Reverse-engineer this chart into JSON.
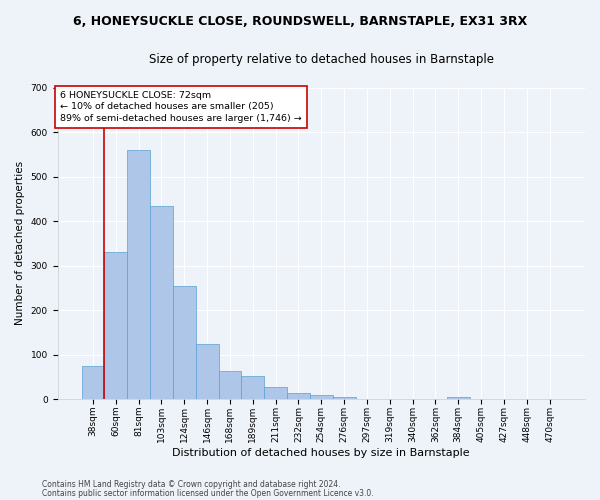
{
  "title_line1": "6, HONEYSUCKLE CLOSE, ROUNDSWELL, BARNSTAPLE, EX31 3RX",
  "title_line2": "Size of property relative to detached houses in Barnstaple",
  "xlabel": "Distribution of detached houses by size in Barnstaple",
  "ylabel": "Number of detached properties",
  "categories": [
    "38sqm",
    "60sqm",
    "81sqm",
    "103sqm",
    "124sqm",
    "146sqm",
    "168sqm",
    "189sqm",
    "211sqm",
    "232sqm",
    "254sqm",
    "276sqm",
    "297sqm",
    "319sqm",
    "340sqm",
    "362sqm",
    "384sqm",
    "405sqm",
    "427sqm",
    "448sqm",
    "470sqm"
  ],
  "values": [
    75,
    330,
    560,
    435,
    255,
    125,
    63,
    52,
    28,
    15,
    10,
    5,
    0,
    0,
    0,
    0,
    5,
    0,
    0,
    0,
    0
  ],
  "bar_color": "#aec6e8",
  "bar_edge_color": "#5a9fd4",
  "vline_color": "#cc0000",
  "vline_x_index": 1,
  "annotation_text": "6 HONEYSUCKLE CLOSE: 72sqm\n← 10% of detached houses are smaller (205)\n89% of semi-detached houses are larger (1,746) →",
  "annotation_box_color": "#ffffff",
  "annotation_box_edge": "#cc0000",
  "ylim": [
    0,
    700
  ],
  "yticks": [
    0,
    100,
    200,
    300,
    400,
    500,
    600,
    700
  ],
  "footer_line1": "Contains HM Land Registry data © Crown copyright and database right 2024.",
  "footer_line2": "Contains public sector information licensed under the Open Government Licence v3.0.",
  "background_color": "#eef2f9",
  "grid_color": "#ffffff",
  "title_fontsize": 9,
  "subtitle_fontsize": 8.5,
  "xlabel_fontsize": 8,
  "ylabel_fontsize": 7.5,
  "tick_fontsize": 6.5,
  "annotation_fontsize": 6.8,
  "footer_fontsize": 5.5
}
